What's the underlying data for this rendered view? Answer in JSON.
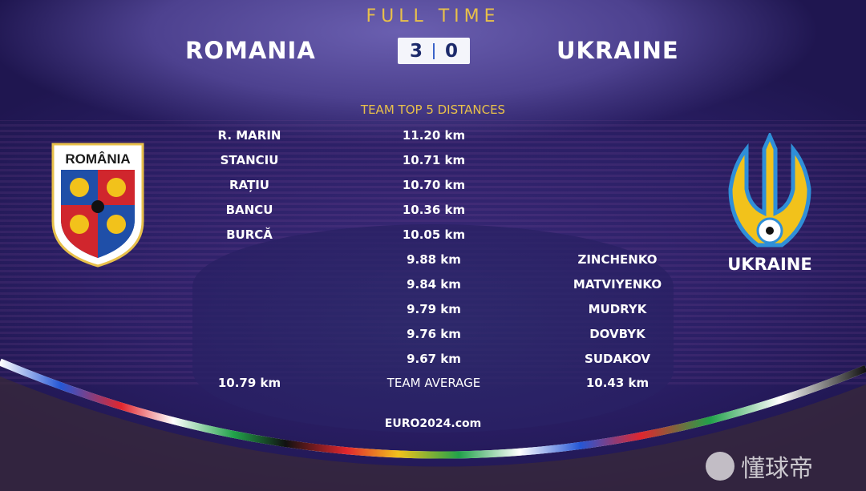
{
  "header": {
    "status": "FULL TIME",
    "home_team": "ROMANIA",
    "away_team": "UKRAINE",
    "home_score": "3",
    "away_score": "0"
  },
  "stat_title": "TEAM TOP 5 DISTANCES",
  "home_rows": [
    {
      "name": "R. MARIN",
      "distance": "11.20 km"
    },
    {
      "name": "STANCIU",
      "distance": "10.71 km"
    },
    {
      "name": "RAȚIU",
      "distance": "10.70 km"
    },
    {
      "name": "BANCU",
      "distance": "10.36 km"
    },
    {
      "name": "BURCĂ",
      "distance": "10.05 km"
    }
  ],
  "away_rows": [
    {
      "name": "ZINCHENKO",
      "distance": "9.88 km"
    },
    {
      "name": "MATVIYENKO",
      "distance": "9.84 km"
    },
    {
      "name": "MUDRYK",
      "distance": "9.79 km"
    },
    {
      "name": "DOVBYK",
      "distance": "9.76 km"
    },
    {
      "name": "SUDAKOV",
      "distance": "9.67 km"
    }
  ],
  "average": {
    "label": "TEAM AVERAGE",
    "home": "10.79 km",
    "away": "10.43 km"
  },
  "footer": "EURO2024.com",
  "home_crest_text": "ROMÂNIA",
  "away_crest_label": "UKRAINE",
  "watermark": "懂球帝",
  "colors": {
    "gold": "#e8c04a",
    "score_bg": "#f4f5fb",
    "score_text": "#1c2a6b",
    "background": "#2b1f66"
  }
}
